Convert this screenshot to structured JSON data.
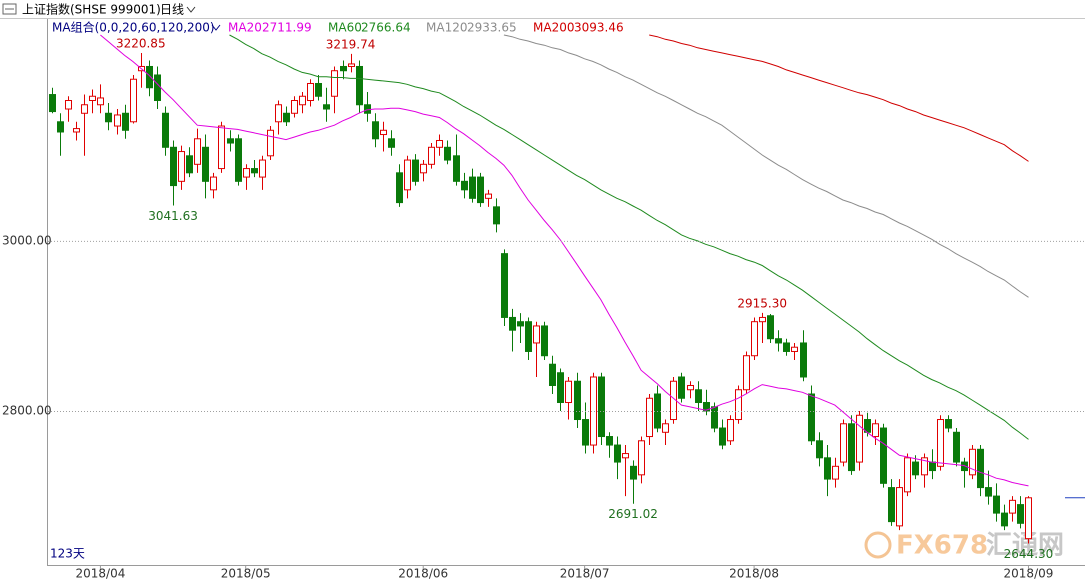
{
  "chart_data": {
    "type": "candlestick",
    "title": "上证指数(SHSE 999001)",
    "period": "日线",
    "legend_title": "MA组合(0,0,20,60,120,200)",
    "footnote": "123天",
    "watermark": {
      "brand": "FX678",
      "name": "汇通网"
    },
    "up_color": "#e00000",
    "down_color": "#0a7a0a",
    "grid": true,
    "ylim": [
      2619,
      3242
    ],
    "yticks": [
      {
        "value": 2800,
        "label": "2800.00"
      },
      {
        "value": 3000,
        "label": "3000.00"
      }
    ],
    "categories": [
      null,
      null,
      null,
      null,
      null,
      null,
      "2018/04",
      null,
      null,
      null,
      null,
      null,
      null,
      null,
      null,
      null,
      null,
      null,
      null,
      null,
      null,
      null,
      null,
      null,
      "2018/05",
      null,
      null,
      null,
      null,
      null,
      null,
      null,
      null,
      null,
      null,
      null,
      null,
      null,
      null,
      null,
      null,
      null,
      null,
      null,
      null,
      null,
      "2018/06",
      null,
      null,
      null,
      null,
      null,
      null,
      null,
      null,
      null,
      null,
      null,
      null,
      null,
      null,
      null,
      null,
      null,
      null,
      null,
      "2018/07",
      null,
      null,
      null,
      null,
      null,
      null,
      null,
      null,
      null,
      null,
      null,
      null,
      null,
      null,
      null,
      null,
      null,
      null,
      null,
      null,
      "2018/08",
      null,
      null,
      null,
      null,
      null,
      null,
      null,
      null,
      null,
      null,
      null,
      null,
      null,
      null,
      null,
      null,
      null,
      null,
      null,
      null,
      null,
      null,
      null,
      null,
      null,
      null,
      null,
      null,
      null,
      null,
      null,
      null,
      null,
      "2018/09"
    ],
    "ohlc": {
      "open": [
        3172,
        3140,
        3155,
        3128,
        3150,
        3165,
        3160,
        3150,
        3135,
        3150,
        3140,
        3200,
        3205,
        3195,
        3150,
        3110,
        3070,
        3100,
        3090,
        3110,
        3060,
        3085,
        3120,
        3120,
        3075,
        3085,
        3075,
        3100,
        3140,
        3150,
        3150,
        3160,
        3165,
        3185,
        3160,
        3170,
        3205,
        3205,
        3205,
        3160,
        3140,
        3125,
        3120,
        3080,
        3060,
        3095,
        3080,
        3090,
        3110,
        3110,
        3100,
        3070,
        3075,
        3075,
        3050,
        3040,
        2985,
        2910,
        2905,
        2905,
        2880,
        2900,
        2855,
        2845,
        2810,
        2835,
        2790,
        2760,
        2840,
        2770,
        2760,
        2745,
        2735,
        2725,
        2770,
        2820,
        2775,
        2790,
        2840,
        2825,
        2825,
        2810,
        2805,
        2780,
        2765,
        2790,
        2825,
        2865,
        2905,
        2912,
        2885,
        2880,
        2870,
        2880,
        2820,
        2765,
        2745,
        2720,
        2740,
        2785,
        2740,
        2790,
        2770,
        2780,
        2710,
        2665,
        2705,
        2740,
        2725,
        2740,
        2735,
        2790,
        2775,
        2740,
        2725,
        2755,
        2710,
        2700,
        2680,
        2680,
        2690,
        2650
      ],
      "high": [
        3180,
        3150,
        3170,
        3140,
        3172,
        3178,
        3184,
        3162,
        3155,
        3160,
        3195,
        3220.85,
        3212,
        3205,
        3158,
        3118,
        3112,
        3110,
        3132,
        3125,
        3080,
        3140,
        3130,
        3125,
        3090,
        3095,
        3100,
        3135,
        3165,
        3158,
        3170,
        3175,
        3190,
        3195,
        3180,
        3205,
        3212,
        3219.74,
        3212,
        3175,
        3150,
        3140,
        3130,
        3090,
        3100,
        3102,
        3095,
        3115,
        3125,
        3118,
        3125,
        3080,
        3085,
        3080,
        3060,
        3050,
        2990,
        2920,
        2915,
        2910,
        2905,
        2905,
        2865,
        2850,
        2840,
        2845,
        2810,
        2845,
        2845,
        2775,
        2770,
        2760,
        2742,
        2770,
        2820,
        2830,
        2790,
        2840,
        2845,
        2835,
        2835,
        2825,
        2810,
        2790,
        2795,
        2830,
        2870,
        2910,
        2915.3,
        2914,
        2895,
        2885,
        2880,
        2895,
        2830,
        2775,
        2760,
        2745,
        2790,
        2795,
        2800,
        2798,
        2790,
        2785,
        2720,
        2720,
        2750,
        2748,
        2750,
        2755,
        2795,
        2795,
        2780,
        2745,
        2760,
        2760,
        2730,
        2715,
        2690,
        2700,
        2700,
        2700
      ],
      "low": [
        3150,
        3100,
        3140,
        3118,
        3100,
        3150,
        3150,
        3130,
        3125,
        3120,
        3138,
        3180,
        3170,
        3155,
        3100,
        3041.63,
        3060,
        3075,
        3080,
        3050,
        3050,
        3080,
        3105,
        3065,
        3060,
        3075,
        3060,
        3095,
        3125,
        3135,
        3145,
        3150,
        3158,
        3165,
        3140,
        3150,
        3190,
        3198,
        3150,
        3140,
        3110,
        3105,
        3100,
        3040,
        3050,
        3065,
        3070,
        3085,
        3100,
        3090,
        3065,
        3050,
        3045,
        3040,
        3040,
        3010,
        2900,
        2870,
        2880,
        2860,
        2840,
        2860,
        2820,
        2800,
        2790,
        2780,
        2750,
        2750,
        2760,
        2745,
        2720,
        2700,
        2691.02,
        2715,
        2760,
        2775,
        2760,
        2785,
        2810,
        2815,
        2800,
        2795,
        2775,
        2755,
        2760,
        2785,
        2820,
        2860,
        2880,
        2880,
        2870,
        2865,
        2860,
        2835,
        2760,
        2735,
        2700,
        2710,
        2735,
        2725,
        2730,
        2770,
        2760,
        2710,
        2665,
        2660,
        2700,
        2720,
        2710,
        2720,
        2730,
        2775,
        2735,
        2710,
        2720,
        2700,
        2690,
        2670,
        2660,
        2670,
        2662,
        2644.3
      ],
      "close": [
        3152,
        3128,
        3165,
        3132,
        3160,
        3170,
        3168,
        3140,
        3148,
        3130,
        3190,
        3205,
        3180,
        3165,
        3110,
        3065,
        3105,
        3080,
        3120,
        3070,
        3075,
        3135,
        3115,
        3070,
        3085,
        3080,
        3095,
        3130,
        3160,
        3140,
        3165,
        3170,
        3185,
        3170,
        3155,
        3200,
        3200,
        3208,
        3160,
        3150,
        3120,
        3130,
        3110,
        3045,
        3095,
        3070,
        3090,
        3110,
        3118,
        3095,
        3070,
        3060,
        3050,
        3045,
        3055,
        3020,
        2910,
        2895,
        2900,
        2870,
        2900,
        2865,
        2830,
        2810,
        2835,
        2790,
        2760,
        2840,
        2770,
        2760,
        2740,
        2750,
        2720,
        2765,
        2815,
        2780,
        2785,
        2835,
        2815,
        2830,
        2810,
        2800,
        2780,
        2760,
        2790,
        2825,
        2865,
        2905,
        2910,
        2885,
        2880,
        2870,
        2875,
        2840,
        2765,
        2745,
        2720,
        2735,
        2785,
        2730,
        2795,
        2775,
        2785,
        2715,
        2670,
        2710,
        2745,
        2725,
        2745,
        2730,
        2790,
        2780,
        2740,
        2730,
        2755,
        2710,
        2700,
        2680,
        2665,
        2695,
        2668,
        2698
      ]
    },
    "series": [
      {
        "name": "MA20",
        "color": "#e000e0",
        "values": [
          null,
          null,
          null,
          null,
          null,
          null,
          3242,
          3234,
          3226,
          3218,
          3211,
          3203,
          3195,
          3185,
          3175,
          3166,
          3156,
          3146,
          3136,
          3135,
          3134,
          3133,
          3132,
          3131,
          3129,
          3127,
          3125,
          3123,
          3121,
          3119,
          3122,
          3125,
          3128,
          3130,
          3133,
          3136,
          3141,
          3145,
          3150,
          3154,
          3155,
          3155,
          3156,
          3156,
          3154,
          3152,
          3149,
          3147,
          3145,
          3139,
          3132,
          3126,
          3119,
          3112,
          3104,
          3097,
          3089,
          3077,
          3062,
          3048,
          3036,
          3024,
          3013,
          3001,
          2987,
          2973,
          2959,
          2945,
          2931,
          2914,
          2898,
          2881,
          2865,
          2848,
          2840,
          2832,
          2823,
          2815,
          2807,
          2805,
          2803,
          2801,
          2804,
          2808,
          2811,
          2815,
          2820,
          2826,
          2831,
          2829,
          2827,
          2826,
          2824,
          2822,
          2818,
          2815,
          2811,
          2807,
          2799,
          2791,
          2783,
          2775,
          2768,
          2762,
          2755,
          2748,
          2746,
          2744,
          2742,
          2740,
          2739,
          2738,
          2737,
          2736,
          2732,
          2728,
          2725,
          2721,
          2719,
          2716,
          2714,
          2711.99
        ]
      },
      {
        "name": "MA60",
        "color": "#1f8a1f",
        "values": [
          null,
          null,
          null,
          null,
          null,
          null,
          null,
          null,
          null,
          null,
          null,
          null,
          null,
          null,
          null,
          null,
          null,
          null,
          null,
          null,
          null,
          null,
          3242,
          3237,
          3231,
          3226,
          3220,
          3216,
          3211,
          3207,
          3202,
          3198,
          3196,
          3193,
          3193,
          3192,
          3192,
          3191,
          3191,
          3190,
          3189,
          3188,
          3187,
          3186,
          3184,
          3181,
          3179,
          3176,
          3174,
          3169,
          3164,
          3158,
          3153,
          3148,
          3142,
          3136,
          3131,
          3125,
          3119,
          3113,
          3107,
          3101,
          3095,
          3089,
          3083,
          3077,
          3072,
          3066,
          3060,
          3055,
          3050,
          3046,
          3041,
          3036,
          3030,
          3024,
          3019,
          3013,
          3007,
          3003,
          3000,
          2996,
          2993,
          2989,
          2985,
          2982,
          2978,
          2975,
          2971,
          2965,
          2959,
          2954,
          2948,
          2942,
          2935,
          2928,
          2921,
          2914,
          2907,
          2900,
          2893,
          2885,
          2878,
          2871,
          2865,
          2859,
          2854,
          2848,
          2842,
          2837,
          2833,
          2828,
          2824,
          2819,
          2813,
          2807,
          2801,
          2795,
          2789,
          2781,
          2774,
          2766.64
        ]
      },
      {
        "name": "MA120",
        "color": "#8c8c8c",
        "values": [
          null,
          null,
          null,
          null,
          null,
          null,
          null,
          null,
          null,
          null,
          null,
          null,
          null,
          null,
          null,
          null,
          null,
          null,
          null,
          null,
          null,
          null,
          null,
          null,
          null,
          null,
          null,
          null,
          null,
          null,
          null,
          null,
          null,
          null,
          null,
          null,
          null,
          null,
          null,
          null,
          null,
          null,
          null,
          null,
          null,
          null,
          null,
          null,
          null,
          null,
          null,
          null,
          null,
          null,
          null,
          null,
          3242,
          3240,
          3237,
          3235,
          3232,
          3230,
          3227,
          3225,
          3221,
          3218,
          3214,
          3211,
          3207,
          3202,
          3198,
          3193,
          3189,
          3184,
          3179,
          3174,
          3170,
          3165,
          3160,
          3155,
          3150,
          3146,
          3141,
          3136,
          3129,
          3122,
          3115,
          3108,
          3101,
          3095,
          3089,
          3084,
          3078,
          3072,
          3067,
          3062,
          3058,
          3053,
          3048,
          3045,
          3041,
          3038,
          3034,
          3031,
          3026,
          3021,
          3017,
          3012,
          3007,
          3002,
          2996,
          2991,
          2985,
          2980,
          2975,
          2970,
          2964,
          2959,
          2954,
          2947,
          2940,
          2933.65
        ]
      },
      {
        "name": "MA200",
        "color": "#d00000",
        "values": [
          null,
          null,
          null,
          null,
          null,
          null,
          null,
          null,
          null,
          null,
          null,
          null,
          null,
          null,
          null,
          null,
          null,
          null,
          null,
          null,
          null,
          null,
          null,
          null,
          null,
          null,
          null,
          null,
          null,
          null,
          null,
          null,
          null,
          null,
          null,
          null,
          null,
          null,
          null,
          null,
          null,
          null,
          null,
          null,
          null,
          null,
          null,
          null,
          null,
          null,
          null,
          null,
          null,
          null,
          null,
          null,
          null,
          null,
          null,
          null,
          null,
          null,
          null,
          null,
          null,
          null,
          null,
          null,
          null,
          null,
          null,
          null,
          null,
          null,
          3242,
          3240,
          3237,
          3235,
          3232,
          3230,
          3227,
          3225,
          3223,
          3221,
          3219,
          3217,
          3215,
          3213,
          3211,
          3208,
          3205,
          3201,
          3198,
          3195,
          3192,
          3189,
          3186,
          3183,
          3180,
          3177,
          3174,
          3172,
          3169,
          3166,
          3162,
          3159,
          3155,
          3152,
          3148,
          3145,
          3142,
          3139,
          3136,
          3133,
          3129,
          3125,
          3121,
          3117,
          3113,
          3106,
          3100,
          3093.46
        ]
      }
    ],
    "annotations": [
      {
        "value": 3220.85,
        "label": "3220.85"
      },
      {
        "value": 3041.63,
        "label": "3041.63"
      },
      {
        "value": 3219.74,
        "label": "3219.74"
      },
      {
        "value": 2691.02,
        "label": "2691.02"
      },
      {
        "value": 2915.3,
        "label": "2915.30"
      },
      {
        "value": 2644.3,
        "label": "2644.30"
      }
    ]
  }
}
